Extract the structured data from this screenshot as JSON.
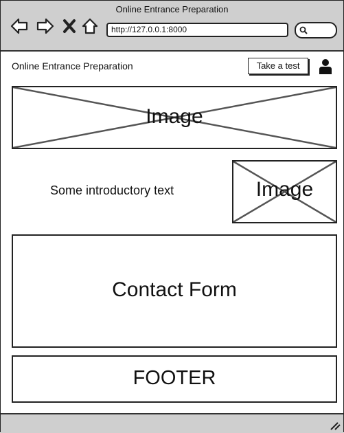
{
  "window": {
    "title": "Online Entrance Preparation"
  },
  "toolbar": {
    "icons": [
      "back-arrow-icon",
      "forward-arrow-icon",
      "close-x-icon",
      "home-icon"
    ],
    "url": "http://127.0.0.1:8000",
    "search_icon": "search-icon"
  },
  "header": {
    "site_title": "Online Entrance Preparation",
    "cta_label": "Take a test",
    "user_icon": "user-icon"
  },
  "main": {
    "banner_image_label": "Image",
    "intro_text": "Some introductory text",
    "intro_image_label": "Image",
    "contact_form_label": "Contact Form",
    "footer_label": "FOOTER"
  }
}
